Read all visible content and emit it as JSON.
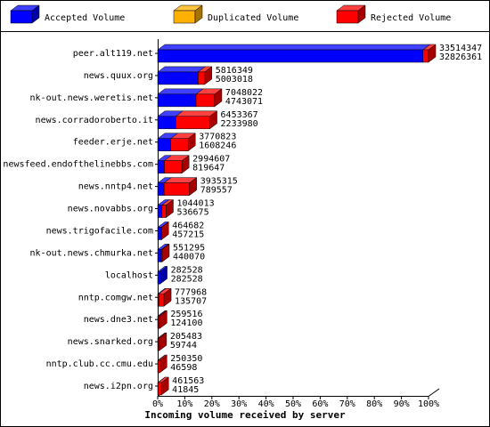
{
  "chart_data": {
    "type": "bar",
    "orientation": "horizontal",
    "stacked": true,
    "xlabel": "Incoming volume received by server",
    "categories": [
      "peer.alt119.net",
      "news.quux.org",
      "nk-out.news.weretis.net",
      "news.corradoroberto.it",
      "feeder.erje.net",
      "newsfeed.endofthelinebbs.com",
      "news.nntp4.net",
      "news.novabbs.org",
      "news.trigofacile.com",
      "nk-out.news.chmurka.net",
      "localhost",
      "nntp.comgw.net",
      "news.dne3.net",
      "news.snarked.org",
      "nntp.club.cc.cmu.edu",
      "news.i2pn.org"
    ],
    "series": [
      {
        "name": "Accepted Volume",
        "color": "#0000ff",
        "values": [
          32826361,
          5003018,
          4743071,
          2233980,
          1608246,
          819647,
          789557,
          536675,
          457215,
          440070,
          282528,
          135707,
          124100,
          59744,
          46598,
          41845
        ]
      },
      {
        "name": "Duplicated Volume",
        "color": "#ffb000",
        "values": [
          0,
          0,
          0,
          0,
          0,
          0,
          0,
          0,
          0,
          0,
          0,
          0,
          0,
          0,
          0,
          0
        ]
      },
      {
        "name": "Rejected Volume",
        "color": "#ff0000",
        "values": [
          687986,
          813331,
          2304951,
          4219387,
          2162577,
          2174960,
          3145758,
          507338,
          7467,
          111225,
          0,
          642261,
          135416,
          145739,
          203752,
          419718
        ]
      }
    ],
    "total_labels": [
      33514347,
      5816349,
      7048022,
      6453367,
      3770823,
      2994607,
      3935315,
      1044013,
      464682,
      551295,
      282528,
      777968,
      259516,
      205483,
      250350,
      461563
    ],
    "xlim": [
      0,
      33514347
    ],
    "xticks": [
      {
        "value": 0,
        "label": "0%"
      },
      {
        "value": 3351434.7,
        "label": "10%"
      },
      {
        "value": 6702869.4,
        "label": "20%"
      },
      {
        "value": 10054304.1,
        "label": "30%"
      },
      {
        "value": 13405738.8,
        "label": "40%"
      },
      {
        "value": 16757173.5,
        "label": "50%"
      },
      {
        "value": 20108608.2,
        "label": "60%"
      },
      {
        "value": 23460042.9,
        "label": "70%"
      },
      {
        "value": 26811477.6,
        "label": "80%"
      },
      {
        "value": 30162912.3,
        "label": "90%"
      },
      {
        "value": 33514347,
        "label": "100%"
      }
    ]
  }
}
